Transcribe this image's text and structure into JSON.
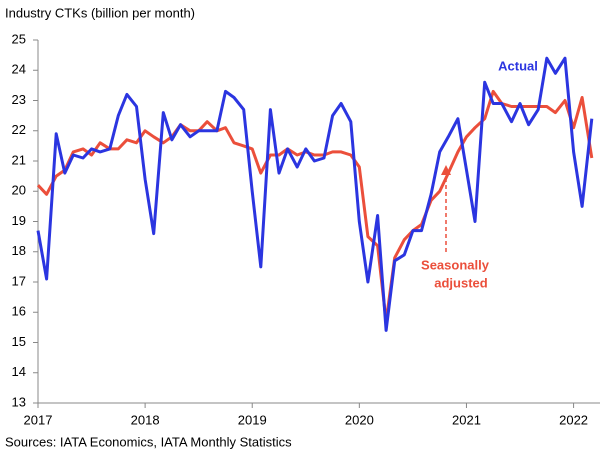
{
  "chart_data": {
    "type": "line",
    "title": "Industry CTKs (billion per month)",
    "source": "Sources: IATA Economics, IATA Monthly Statistics",
    "x": [
      2017,
      2017.08,
      2017.17,
      2017.25,
      2017.33,
      2017.42,
      2017.5,
      2017.58,
      2017.67,
      2017.75,
      2017.83,
      2017.92,
      2018,
      2018.08,
      2018.17,
      2018.25,
      2018.33,
      2018.42,
      2018.5,
      2018.58,
      2018.67,
      2018.75,
      2018.83,
      2018.92,
      2019,
      2019.08,
      2019.17,
      2019.25,
      2019.33,
      2019.42,
      2019.5,
      2019.58,
      2019.67,
      2019.75,
      2019.83,
      2019.92,
      2020,
      2020.08,
      2020.17,
      2020.25,
      2020.33,
      2020.42,
      2020.5,
      2020.58,
      2020.67,
      2020.75,
      2020.83,
      2020.92,
      2021,
      2021.08,
      2021.17,
      2021.25,
      2021.33,
      2021.42,
      2021.5,
      2021.58,
      2021.67,
      2021.75,
      2021.83,
      2021.92,
      2022,
      2022.08,
      2022.17
    ],
    "series": [
      {
        "name": "Actual",
        "color": "#2b35e0",
        "values": [
          18.7,
          17.1,
          21.9,
          20.6,
          21.2,
          21.1,
          21.4,
          21.3,
          21.4,
          22.5,
          23.2,
          22.8,
          20.4,
          18.6,
          22.6,
          21.7,
          22.2,
          21.8,
          22.0,
          22.0,
          22.0,
          23.3,
          23.1,
          22.7,
          20.0,
          17.5,
          22.7,
          20.6,
          21.4,
          20.8,
          21.4,
          21.0,
          21.1,
          22.5,
          22.9,
          22.3,
          19.0,
          17.0,
          19.2,
          15.4,
          17.7,
          17.9,
          18.7,
          18.7,
          19.9,
          21.3,
          21.8,
          22.4,
          20.7,
          19.0,
          23.6,
          22.9,
          22.9,
          22.3,
          22.9,
          22.2,
          22.7,
          24.4,
          23.9,
          24.4,
          21.3,
          19.5,
          22.4
        ]
      },
      {
        "name": "Seasonally adjusted",
        "color": "#eb4f3b",
        "values": [
          20.2,
          19.9,
          20.5,
          20.7,
          21.3,
          21.4,
          21.2,
          21.6,
          21.4,
          21.4,
          21.7,
          21.6,
          22.0,
          21.8,
          21.6,
          21.8,
          22.2,
          22.0,
          22.0,
          22.3,
          22.0,
          22.1,
          21.6,
          21.5,
          21.4,
          20.6,
          21.2,
          21.2,
          21.4,
          21.2,
          21.3,
          21.2,
          21.2,
          21.3,
          21.3,
          21.2,
          20.8,
          18.5,
          18.2,
          15.7,
          17.8,
          18.4,
          18.7,
          18.9,
          19.7,
          20.0,
          20.6,
          21.3,
          21.8,
          22.1,
          22.4,
          23.3,
          22.9,
          22.8,
          22.8,
          22.8,
          22.8,
          22.8,
          22.6,
          23.0,
          22.1,
          23.1,
          21.1
        ]
      }
    ],
    "annotations": [
      {
        "text": "Actual"
      },
      {
        "lines": [
          "Seasonally",
          "adjusted"
        ]
      }
    ],
    "xlim": [
      2017,
      2022.2
    ],
    "xticks": [
      2017,
      2018,
      2019,
      2020,
      2021,
      2022
    ],
    "ylim": [
      13,
      25
    ],
    "yticks": [
      13,
      14,
      15,
      16,
      17,
      18,
      19,
      20,
      21,
      22,
      23,
      24,
      25
    ],
    "grid": false
  }
}
